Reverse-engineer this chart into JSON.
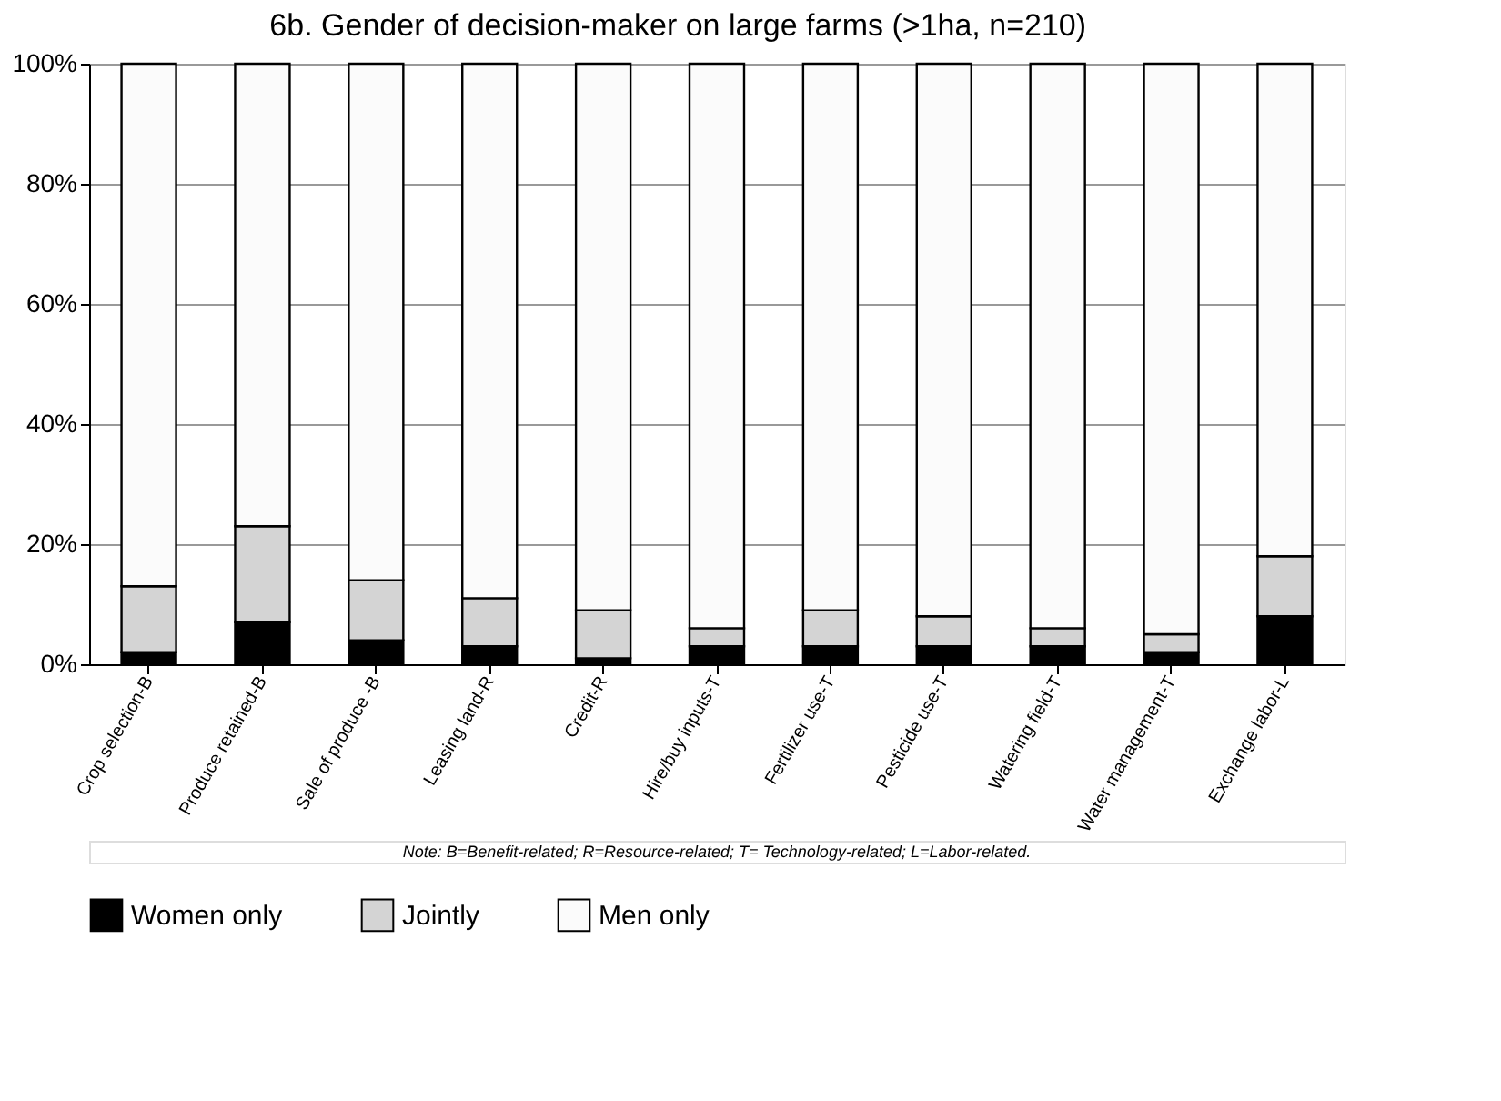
{
  "chart_data": {
    "type": "bar",
    "title": "6b. Gender of decision-maker on large farms (>1ha, n=210)",
    "categories": [
      "Crop selection-B",
      "Produce retained-B",
      "Sale of produce -B",
      "Leasing land-R",
      "Credit-R",
      "Hire/buy inputs-T",
      "Fertilizer use-T",
      "Pesticide use-T",
      "Watering field-T",
      "Water management-T",
      "Exchange labor-L"
    ],
    "series": [
      {
        "name": "Women only",
        "color": "#000000",
        "values": [
          2,
          7,
          4,
          3,
          1,
          3,
          3,
          3,
          3,
          2,
          8
        ]
      },
      {
        "name": "Jointly",
        "color": "#d4d4d4",
        "values": [
          11,
          16,
          10,
          8,
          8,
          3,
          6,
          5,
          3,
          3,
          10
        ]
      },
      {
        "name": "Men only",
        "color": "#fbfbfb",
        "values": [
          87,
          77,
          86,
          89,
          91,
          94,
          91,
          92,
          94,
          95,
          82
        ]
      }
    ],
    "stacked": true,
    "ylim": [
      0,
      100
    ],
    "yticks": [
      {
        "value": 0,
        "label": "0%"
      },
      {
        "value": 20,
        "label": "20%"
      },
      {
        "value": 40,
        "label": "40%"
      },
      {
        "value": 60,
        "label": "60%"
      },
      {
        "value": 80,
        "label": "80%"
      },
      {
        "value": 100,
        "label": "100%"
      }
    ],
    "grid": "y",
    "legend": "bottom",
    "annotations": [
      "Note: B=Benefit-related;  R=Resource-related; T= Technology-related; L=Labor-related."
    ]
  }
}
